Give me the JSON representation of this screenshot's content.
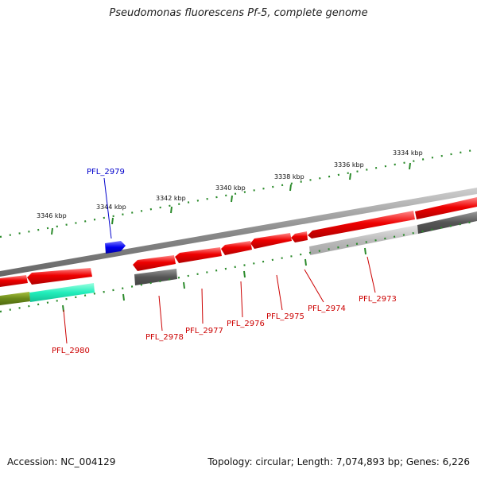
{
  "title": "Pseudomonas fluorescens Pf-5, complete genome",
  "footer": {
    "accession": "Accession: NC_004129",
    "summary": "Topology: circular; Length: 7,074,893 bp; Genes: 6,226"
  },
  "ticks": [
    {
      "label": "3334 kbp"
    },
    {
      "label": "3336 kbp"
    },
    {
      "label": "3338 kbp"
    },
    {
      "label": "3340 kbp"
    },
    {
      "label": "3342 kbp"
    },
    {
      "label": "3344 kbp"
    },
    {
      "label": "3346 kbp"
    }
  ],
  "genes": [
    {
      "label": "PFL_2973",
      "color": "#cc0000"
    },
    {
      "label": "PFL_2974",
      "color": "#cc0000"
    },
    {
      "label": "PFL_2975",
      "color": "#cc0000"
    },
    {
      "label": "PFL_2976",
      "color": "#cc0000"
    },
    {
      "label": "PFL_2977",
      "color": "#cc0000"
    },
    {
      "label": "PFL_2978",
      "color": "#cc0000"
    },
    {
      "label": "PFL_2979",
      "color": "#0000cc"
    },
    {
      "label": "PFL_2980",
      "color": "#cc0000"
    }
  ],
  "colors": {
    "cds_reverse": "#ee0000",
    "cds_forward": "#0000ee",
    "backbone": "#888888",
    "gc_skew_dots": "#2a8a2a",
    "feature_dark": "#555555",
    "feature_light": "#bbbbbb",
    "feature_olive": "#6b8a1a",
    "feature_aqua": "#22eebb"
  }
}
